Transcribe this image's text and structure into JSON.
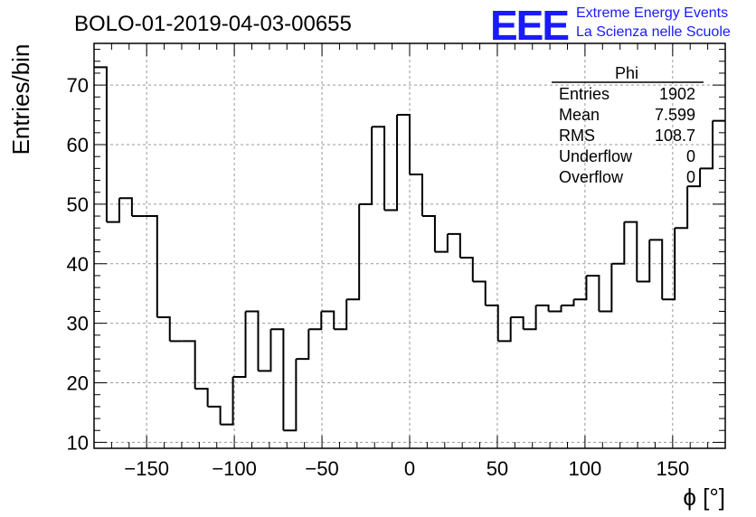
{
  "chart_data": {
    "type": "histogram",
    "title": "BOLO-01-2019-04-03-00655",
    "xlabel": "ϕ [°]",
    "ylabel": "Entries/bin",
    "xlim": [
      -180,
      180
    ],
    "ylim": [
      9,
      77
    ],
    "grid": true,
    "bin_edges_start": -180,
    "bin_width": 7.2,
    "values": [
      73,
      47,
      51,
      48,
      48,
      31,
      27,
      27,
      19,
      16,
      13,
      21,
      32,
      22,
      29,
      12,
      24,
      29,
      32,
      29,
      34,
      50,
      63,
      49,
      65,
      55,
      48,
      42,
      45,
      41,
      37,
      33,
      27,
      31,
      29,
      33,
      32,
      33,
      34,
      38,
      32,
      40,
      47,
      37,
      44,
      34,
      46,
      53,
      56,
      64
    ],
    "xticks": [
      -150,
      -100,
      -50,
      0,
      50,
      100,
      150
    ],
    "xtick_labels": [
      "−150",
      "−100",
      "−50",
      "0",
      "50",
      "100",
      "150"
    ],
    "yticks": [
      10,
      20,
      30,
      40,
      50,
      60,
      70
    ],
    "ytick_labels": [
      "10",
      "20",
      "30",
      "40",
      "50",
      "60",
      "70"
    ],
    "stats_box": {
      "title": "Phi",
      "rows": [
        {
          "label": "Entries",
          "value": "1902"
        },
        {
          "label": "Mean",
          "value": "7.599"
        },
        {
          "label": "RMS",
          "value": "108.7"
        },
        {
          "label": "Underflow",
          "value": "0"
        },
        {
          "label": "Overflow",
          "value": "0"
        }
      ]
    }
  },
  "logo": {
    "big": "EEE",
    "line1": "Extreme Energy Events",
    "line2": "La Scienza nelle Scuole",
    "color": "#1a1aff"
  }
}
